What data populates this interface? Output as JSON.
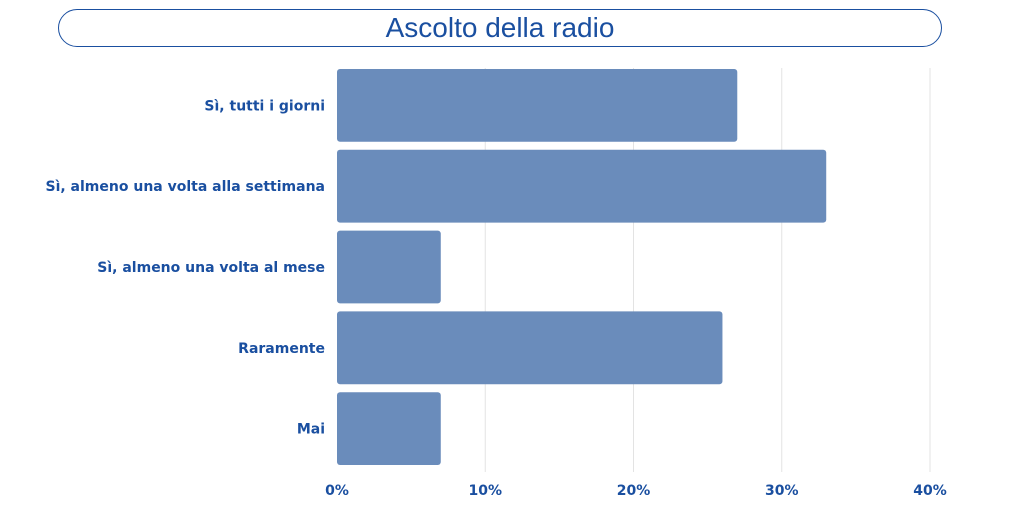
{
  "chart_data": {
    "type": "bar",
    "orientation": "horizontal",
    "title": "Ascolto della radio",
    "categories": [
      "Sì, tutti i giorni",
      "Sì, almeno una volta alla settimana",
      "Sì, almeno una volta al mese",
      "Raramente",
      "Mai"
    ],
    "values": [
      27,
      33,
      7,
      26,
      7
    ],
    "xlim": [
      0,
      40
    ],
    "xticks": [
      0,
      10,
      20,
      30,
      40
    ],
    "xtick_labels": [
      "0%",
      "10%",
      "20%",
      "30%",
      "40%"
    ],
    "grid": "vertical",
    "legend": "none",
    "colors": {
      "bar": "#6a8cbb",
      "text": "#1a4fa0",
      "grid": "#e3e3e3"
    }
  }
}
